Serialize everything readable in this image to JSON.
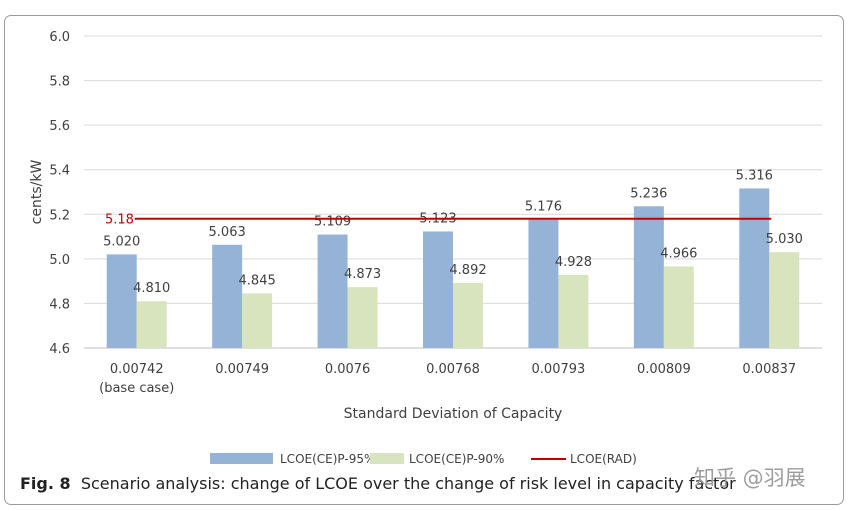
{
  "chart_data": {
    "type": "bar",
    "title": "",
    "xlabel": "Standard Deviation of Capacity",
    "ylabel": "cents/kW",
    "ylim": [
      4.6,
      6.0
    ],
    "yticks": [
      "6.0",
      "5.8",
      "5.6",
      "5.4",
      "5.2",
      "5.0",
      "4.8",
      "4.6"
    ],
    "categories": [
      "0.00742",
      "0.00749",
      "0.0076",
      "0.00768",
      "0.00793",
      "0.00809",
      "0.00837"
    ],
    "category_note": "(base case)",
    "series": [
      {
        "name": "LCOE(CE)P-95%",
        "color": "#95b3d7",
        "values": [
          5.02,
          5.063,
          5.109,
          5.123,
          5.176,
          5.236,
          5.316
        ],
        "labels": [
          "5.020",
          "5.063",
          "5.109",
          "5.123",
          "5.176",
          "5.236",
          "5.316"
        ]
      },
      {
        "name": "LCOE(CE)P-90%",
        "color": "#d7e4bd",
        "values": [
          4.81,
          4.845,
          4.873,
          4.892,
          4.928,
          4.966,
          5.03
        ],
        "labels": [
          "4.810",
          "4.845",
          "4.873",
          "4.892",
          "4.928",
          "4.966",
          "5.030"
        ]
      }
    ],
    "reference_line": {
      "name": "LCOE(RAD)",
      "value": 5.18,
      "label": "5.18",
      "color": "#c00000"
    },
    "grid": true,
    "legend": "bottom"
  },
  "caption": {
    "label": "Fig. 8",
    "text": "Scenario analysis: change of LCOE over the change of risk level in capacity factor"
  },
  "watermark": "知乎 @羽展"
}
